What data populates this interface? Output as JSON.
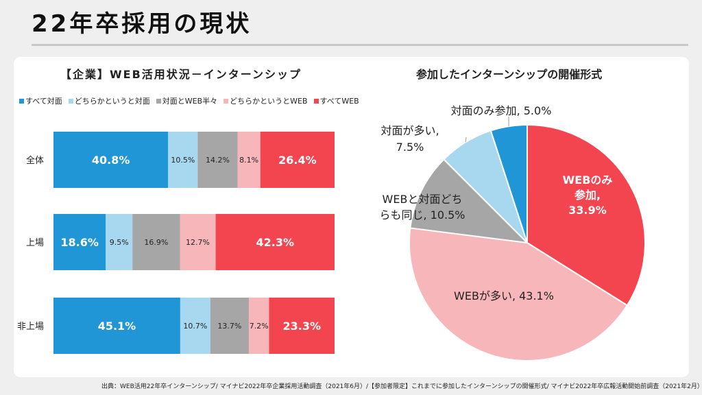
{
  "page": {
    "title": "22年卒採用の現状",
    "source": "出典：WEB活用22年卒インターンシップ/ マイナビ2022年卒企業採用活動調査（2021年6月）/【参加者限定】これまでに参加したインターンシップの開催形式/ マイナビ2022年卒広報活動開始前調査（2021年2月）"
  },
  "chart_data": [
    {
      "type": "bar",
      "orientation": "horizontal",
      "stacked": "100%",
      "title": "【企業】WEB活用状況－インターンシップ",
      "categories": [
        "全体",
        "上場",
        "非上場"
      ],
      "series": [
        {
          "name": "すべて対面",
          "color": "#2196d6",
          "values": [
            40.8,
            18.6,
            45.1
          ]
        },
        {
          "name": "どちらかというと対面",
          "color": "#a7d8f0",
          "values": [
            10.5,
            9.5,
            10.7
          ]
        },
        {
          "name": "対面とWEB半々",
          "color": "#a6a6a6",
          "values": [
            14.2,
            16.9,
            13.7
          ]
        },
        {
          "name": "どちらかというとWEB",
          "color": "#f7b7ba",
          "values": [
            8.1,
            12.7,
            7.2
          ]
        },
        {
          "name": "すべてWEB",
          "color": "#f2454f",
          "values": [
            26.4,
            42.3,
            23.3
          ]
        }
      ],
      "legend_position": "top",
      "grid": false
    },
    {
      "type": "pie",
      "title": "参加したインターンシップの開催形式",
      "slices": [
        {
          "label": "WEBのみ参加",
          "value": 33.9,
          "color": "#f2454f"
        },
        {
          "label": "WEBが多い",
          "value": 43.1,
          "color": "#f7b7ba"
        },
        {
          "label": "WEBと対面どちらも同じ",
          "value": 10.5,
          "color": "#a6a6a6"
        },
        {
          "label": "対面が多い",
          "value": 7.5,
          "color": "#a7d8f0"
        },
        {
          "label": "対面のみ参加",
          "value": 5.0,
          "color": "#2196d6"
        }
      ],
      "data_labels": [
        {
          "lines": [
            "WEBのみ",
            "参加,",
            "33.9%"
          ]
        },
        {
          "lines": [
            "WEBが多い, 43.1%"
          ]
        },
        {
          "lines": [
            "WEBと対面どち",
            "らも同じ, 10.5%"
          ]
        },
        {
          "lines": [
            "対面が多い,",
            "7.5%"
          ]
        },
        {
          "lines": [
            "対面のみ参加, 5.0%"
          ]
        }
      ]
    }
  ]
}
